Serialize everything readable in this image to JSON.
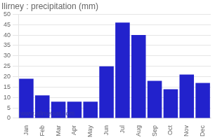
{
  "chart_data": {
    "type": "bar",
    "title": "Ilirney : precipitation (mm)",
    "categories": [
      "Jan",
      "Feb",
      "Mar",
      "Apr",
      "May",
      "Jun",
      "Jul",
      "Aug",
      "Sep",
      "Oct",
      "Nov",
      "Dec"
    ],
    "values": [
      19,
      11,
      8,
      8,
      8,
      25,
      46,
      40,
      18,
      14,
      21,
      17
    ],
    "color": "#2222CC",
    "ylim": [
      0,
      50
    ],
    "yticks": [
      0,
      5,
      10,
      15,
      20,
      25,
      30,
      35,
      40,
      45,
      50
    ],
    "grid": true,
    "annotations": [
      "www.allmetsat.com"
    ]
  }
}
